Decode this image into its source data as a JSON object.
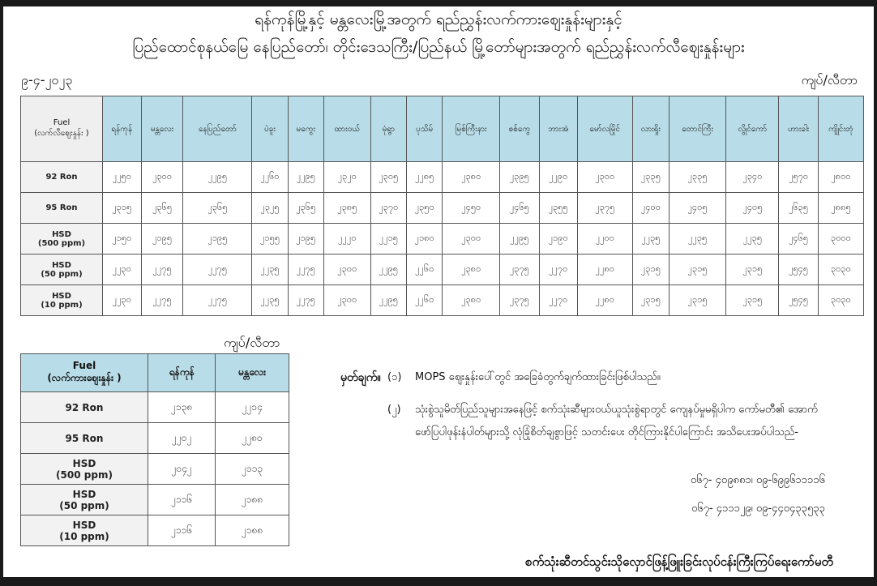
{
  "header": {
    "title_line1": "ရန်ကုန်မြို့နှင့် မန္တလေးမြို့အတွက် ရည်ညွှန်းလက်ကားဈေးနှုန်းများနှင့်",
    "title_line2": "ပြည်ထောင်စုနယ်မြေ နေပြည်တော်၊ တိုင်းဒေသကြီး/ပြည်နယ် မြို့တော်များအတွက် ရည်ညွှန်းလက်လီဈေးနှုန်းများ",
    "date": "၉-၄-၂၀၂၃",
    "unit": "ကျပ်/လီတာ"
  },
  "retail_table": {
    "fuel_header": "Fuel",
    "fuel_subheader": "(လက်လီဈေးနှုန်း )",
    "cities": [
      "ရန်ကုန်",
      "မန္တလေး",
      "နေပြည်တော်",
      "ပဲခူး",
      "မကွေး",
      "ထားဝယ်",
      "မုံရွာ",
      "ပုသိမ်",
      "မြစ်ကြီးနား",
      "စစ်ကွေ",
      "ဘားအံ",
      "မော်လမြိုင်",
      "လားရှိုး",
      "တောင်ကြီး",
      "လွိုင်ကော်",
      "ဟားခါး",
      "ကျိုင်းတုံ"
    ],
    "rows": [
      {
        "fuel": "92 Ron",
        "sub": "",
        "values": [
          "၂၂၅၀",
          "၂၃၀၀",
          "၂၂၉၅",
          "၂၂၆၀",
          "၂၂၉၅",
          "၂၃၂၀",
          "၂၃၀၅",
          "၂၂၈၅",
          "၂၃၈၀",
          "၂၃၉၅",
          "၂၂၉၀",
          "၂၃၀၀",
          "၂၃၃၅",
          "၂၃၃၅",
          "၂၃၄၀",
          "၂၅၇၀",
          "၂၈၀၀"
        ]
      },
      {
        "fuel": "95 Ron",
        "sub": "",
        "values": [
          "၂၃၁၅",
          "၂၃၆၅",
          "၂၃၆၅",
          "၂၃၂၅",
          "၂၃၆၅",
          "၂၃၈၅",
          "၂၃၇၀",
          "၂၃၅၀",
          "၂၄၅၀",
          "၂၄၆၅",
          "၂၃၅၅",
          "၂၃၇၅",
          "၂၄၀၀",
          "၂၄၀၅",
          "၂၄၀၅",
          "၂၆၃၅",
          "၂၈၈၅"
        ]
      },
      {
        "fuel": "HSD",
        "sub": "(500 ppm)",
        "values": [
          "၂၁၅၀",
          "၂၁၉၅",
          "၂၁၉၅",
          "၂၁၅၅",
          "၂၁၉၅",
          "၂၂၂၀",
          "၂၂၁၅",
          "၂၁၈၀",
          "၂၃၀၀",
          "၂၂၉၅",
          "၂၁၉၀",
          "၂၂၀၀",
          "၂၂၃၅",
          "၂၂၃၅",
          "၂၂၃၅",
          "၂၄၆၅",
          "၃၀၀၀"
        ]
      },
      {
        "fuel": "HSD",
        "sub": "(50 ppm)",
        "values": [
          "၂၂၃၀",
          "၂၂၇၅",
          "၂၂၇၅",
          "၂၂၃၅",
          "၂၂၇၅",
          "၂၃၀၀",
          "၂၂၉၅",
          "၂၂၆၀",
          "၂၃၈၀",
          "၂၃၇၅",
          "၂၂၇၀",
          "၂၂၈၀",
          "၂၃၁၅",
          "၂၃၁၅",
          "၂၃၁၅",
          "၂၅၄၅",
          "၃၀၃၀"
        ]
      },
      {
        "fuel": "HSD",
        "sub": "(10 ppm)",
        "values": [
          "၂၂၃၀",
          "၂၂၇၅",
          "၂၂၇၅",
          "၂၂၃၅",
          "၂၂၇၅",
          "၂၃၀၀",
          "၂၂၉၅",
          "၂၂၆၀",
          "၂၃၈၀",
          "၂၃၇၅",
          "၂၂၇၀",
          "၂၂၈၀",
          "၂၃၁၅",
          "၂၃၁၅",
          "၂၃၁၅",
          "၂၅၄၅",
          "၃၀၃၀"
        ]
      }
    ]
  },
  "wholesale_table": {
    "unit": "ကျပ်/လီတာ",
    "fuel_header": "Fuel",
    "fuel_subheader": "(လက်ကားဈေးနှုန်း )",
    "cities": [
      "ရန်ကုန်",
      "မန္တလေး"
    ],
    "rows": [
      {
        "fuel": "92 Ron",
        "sub": "",
        "values": [
          "၂၁၃၈",
          "၂၂၁၄"
        ]
      },
      {
        "fuel": "95 Ron",
        "sub": "",
        "values": [
          "၂၂၀၂",
          "၂၂၈၀"
        ]
      },
      {
        "fuel": "HSD",
        "sub": "(500 ppm)",
        "values": [
          "၂၀၄၂",
          "၂၁၁၃"
        ]
      },
      {
        "fuel": "HSD",
        "sub": "(50 ppm)",
        "values": [
          "၂၁၁၆",
          "၂၁၈၈"
        ]
      },
      {
        "fuel": "HSD",
        "sub": "(10 ppm)",
        "values": [
          "၂၁၁၆",
          "၂၁၈၈"
        ]
      }
    ]
  },
  "notes": {
    "label": "မှတ်ချက်။",
    "items": [
      {
        "num": "(၁)",
        "text": "MOPS ဈေးနှုန်းပေါ်တွင် အခြေခံတွက်ချက်ထားခြင်းဖြစ်ပါသည်။"
      },
      {
        "num": "(၂)",
        "text": "သုံးစွဲသူမိတ်ပြည်သူများအနေဖြင့် စက်သုံးဆီများဝယ်ယူသုံးစွဲရာတွင် ကျေနပ်မှုမရှိပါက ကော်မတီ၏ အောက်ဖော်ပြပါဖုန်းနံပါတ်များသို့ လုံခြုံစိတ်ချစွာဖြင့် သတင်းပေး တိုင်ကြားနိုင်ပါကြောင်း အသိပေးအပ်ပါသည်-"
      }
    ],
    "phones": [
      "၀၆၇- ၄၀၉၈၈၁၊ ၀၉-၆၉၉၆၁၁၁၁၆",
      "၀၆၇- ၄၁၁၁၂၉၊ ၀၉-၄၄၀၄၃၃၅၃၃"
    ]
  },
  "footer": {
    "committee": "စက်သုံးဆီတင်သွင်းသိုလှောင်ဖြန့်ဖြူးခြင်းလုပ်ငန်းကြီးကြပ်ရေးကော်မတီ"
  }
}
